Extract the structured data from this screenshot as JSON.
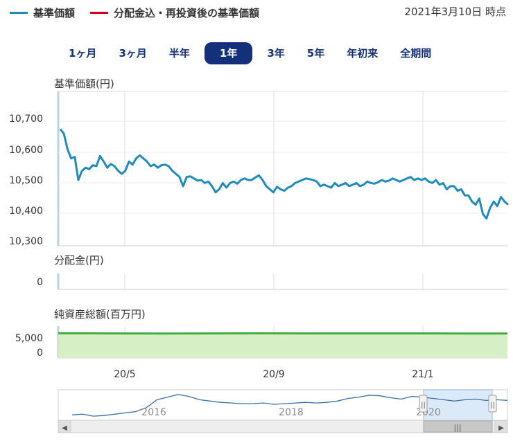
{
  "legend": [
    {
      "label": "基準価額",
      "color": "#1f8bbd"
    },
    {
      "label": "分配金込・再投資後の基準価額",
      "color": "#d0021b"
    }
  ],
  "as_of": "2021年3月10日 時点",
  "tabs": [
    {
      "label": "1ヶ月",
      "active": false
    },
    {
      "label": "3ヶ月",
      "active": false
    },
    {
      "label": "半年",
      "active": false
    },
    {
      "label": "1年",
      "active": true
    },
    {
      "label": "3年",
      "active": false
    },
    {
      "label": "5年",
      "active": false
    },
    {
      "label": "年初来",
      "active": false
    },
    {
      "label": "全期間",
      "active": false
    }
  ],
  "chart_data": [
    {
      "type": "line",
      "title": "基準価額(円)",
      "ylim": [
        10300,
        10700
      ],
      "yticks": [
        "10,700",
        "10,600",
        "10,500",
        "10,400",
        "10,300"
      ],
      "ytick_values": [
        10700,
        10600,
        10500,
        10400,
        10300
      ],
      "series": [
        {
          "name": "基準価額",
          "color": "#1f8bbd",
          "values": [
            10665,
            10650,
            10600,
            10570,
            10575,
            10500,
            10530,
            10540,
            10535,
            10548,
            10545,
            10578,
            10560,
            10540,
            10552,
            10545,
            10530,
            10520,
            10530,
            10560,
            10550,
            10570,
            10580,
            10570,
            10560,
            10545,
            10550,
            10540,
            10548,
            10550,
            10545,
            10530,
            10520,
            10510,
            10480,
            10510,
            10512,
            10505,
            10498,
            10500,
            10490,
            10495,
            10480,
            10460,
            10470,
            10490,
            10475,
            10490,
            10495,
            10488,
            10500,
            10505,
            10500,
            10500,
            10508,
            10515,
            10500,
            10480,
            10470,
            10460,
            10478,
            10470,
            10465,
            10475,
            10480,
            10490,
            10495,
            10500,
            10505,
            10503,
            10500,
            10495,
            10480,
            10485,
            10480,
            10475,
            10490,
            10480,
            10485,
            10490,
            10480,
            10485,
            10490,
            10480,
            10485,
            10495,
            10490,
            10488,
            10493,
            10500,
            10495,
            10498,
            10505,
            10500,
            10495,
            10500,
            10505,
            10510,
            10500,
            10505,
            10500,
            10505,
            10495,
            10490,
            10500,
            10485,
            10490,
            10470,
            10480,
            10480,
            10465,
            10470,
            10450,
            10450,
            10430,
            10420,
            10440,
            10390,
            10375,
            10410,
            10430,
            10415,
            10445,
            10430,
            10420
          ]
        }
      ]
    },
    {
      "type": "bar",
      "title": "分配金(円)",
      "yticks": [
        "0"
      ],
      "values": []
    },
    {
      "type": "area",
      "title": "純資産総額(百万円)",
      "yticks": [
        "5,000",
        "0"
      ],
      "ylim": [
        0,
        7000
      ],
      "series": [
        {
          "values": [
            5400,
            5380,
            5360,
            5380,
            5400,
            5390,
            5380,
            5390,
            5370,
            5360
          ]
        }
      ]
    }
  ],
  "xaxis": {
    "ticks": [
      "20/5",
      "20/9",
      "21/1"
    ]
  },
  "navigator": {
    "years": [
      "2016",
      "2018",
      "2020"
    ],
    "series": [
      10150,
      10160,
      10130,
      10140,
      10160,
      10180,
      10200,
      10260,
      10380,
      10420,
      10460,
      10430,
      10380,
      10360,
      10340,
      10330,
      10320,
      10320,
      10330,
      10310,
      10320,
      10330,
      10340,
      10330,
      10340,
      10360,
      10400,
      10420,
      10450,
      10440,
      10410,
      10390,
      10430,
      10420,
      10400,
      10380,
      10360,
      10380,
      10390,
      10370,
      10380,
      10370
    ],
    "grip": "|||",
    "scroll_left": "◀",
    "scroll_right": "▶",
    "handle": "||"
  }
}
